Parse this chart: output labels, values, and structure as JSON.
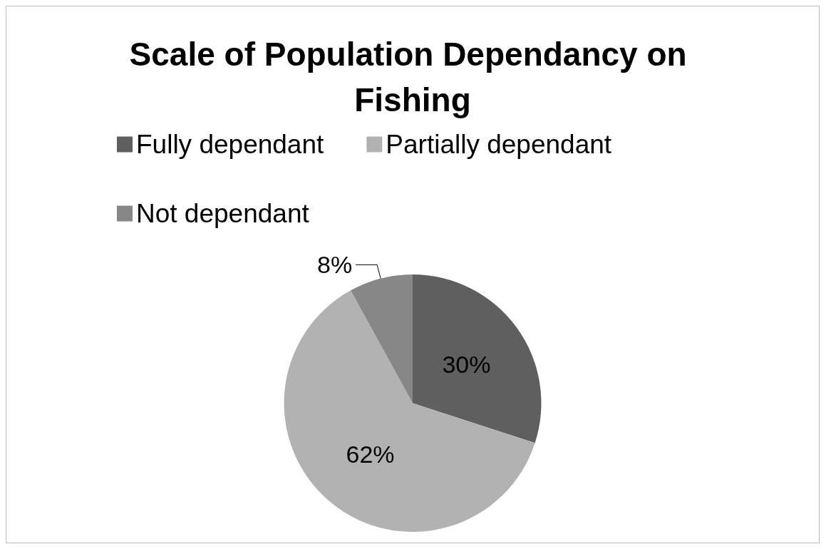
{
  "chart_data": {
    "type": "pie",
    "title": "Scale of Population Dependancy on Fishing",
    "categories": [
      "Fully dependant",
      "Partially dependant",
      "Not dependant"
    ],
    "values": [
      30,
      62,
      8
    ],
    "colors": [
      "#5f5f5f",
      "#b2b2b2",
      "#878787"
    ],
    "value_labels": [
      "30%",
      "62%",
      "8%"
    ],
    "legend": "top"
  }
}
